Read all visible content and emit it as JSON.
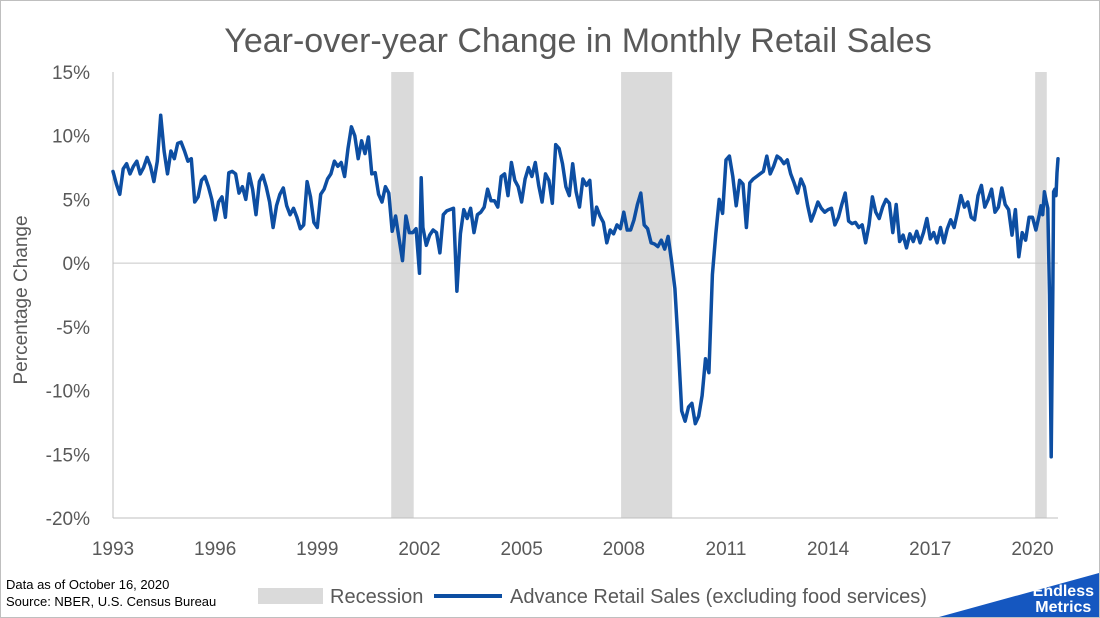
{
  "chart_data": {
    "type": "line",
    "title": "Year-over-year Change in Monthly Retail Sales",
    "xlabel": "",
    "ylabel": "Percentage Change",
    "x_range": [
      1993.0,
      2020.75
    ],
    "ylim": [
      -20,
      15
    ],
    "y_ticks": [
      "15%",
      "10%",
      "5%",
      "0%",
      "-5%",
      "-10%",
      "-15%",
      "-20%"
    ],
    "y_tick_values": [
      15,
      10,
      5,
      0,
      -5,
      -10,
      -15,
      -20
    ],
    "x_ticks": [
      "1993",
      "1996",
      "1999",
      "2002",
      "2005",
      "2008",
      "2011",
      "2014",
      "2017",
      "2020"
    ],
    "x_tick_values": [
      1993,
      1996,
      1999,
      2002,
      2005,
      2008,
      2011,
      2014,
      2017,
      2020
    ],
    "grid": false,
    "legend_position": "bottom",
    "recessions": [
      {
        "start": 2001.17,
        "end": 2001.83
      },
      {
        "start": 2007.92,
        "end": 2009.42
      },
      {
        "start": 2020.08,
        "end": 2020.42
      }
    ],
    "series": [
      {
        "name": "Advance Retail Sales (excluding food services)",
        "color": "#0d4ea2",
        "points": [
          [
            1993.0,
            7.2
          ],
          [
            1993.1,
            6.2
          ],
          [
            1993.2,
            5.4
          ],
          [
            1993.3,
            7.4
          ],
          [
            1993.4,
            7.8
          ],
          [
            1993.5,
            7.0
          ],
          [
            1993.6,
            7.6
          ],
          [
            1993.7,
            8.0
          ],
          [
            1993.8,
            7.0
          ],
          [
            1993.9,
            7.5
          ],
          [
            1994.0,
            8.3
          ],
          [
            1994.1,
            7.6
          ],
          [
            1994.2,
            6.4
          ],
          [
            1994.3,
            8.0
          ],
          [
            1994.4,
            11.6
          ],
          [
            1994.5,
            8.8
          ],
          [
            1994.6,
            7.0
          ],
          [
            1994.7,
            8.8
          ],
          [
            1994.8,
            8.2
          ],
          [
            1994.9,
            9.4
          ],
          [
            1995.0,
            9.5
          ],
          [
            1995.1,
            8.8
          ],
          [
            1995.2,
            8.0
          ],
          [
            1995.3,
            8.2
          ],
          [
            1995.4,
            4.8
          ],
          [
            1995.5,
            5.2
          ],
          [
            1995.6,
            6.5
          ],
          [
            1995.7,
            6.8
          ],
          [
            1995.8,
            6.0
          ],
          [
            1995.9,
            5.0
          ],
          [
            1996.0,
            3.4
          ],
          [
            1996.1,
            4.8
          ],
          [
            1996.2,
            5.2
          ],
          [
            1996.3,
            3.6
          ],
          [
            1996.4,
            7.1
          ],
          [
            1996.5,
            7.2
          ],
          [
            1996.6,
            7.0
          ],
          [
            1996.7,
            5.5
          ],
          [
            1996.8,
            6.0
          ],
          [
            1996.9,
            5.0
          ],
          [
            1997.0,
            7.0
          ],
          [
            1997.1,
            5.8
          ],
          [
            1997.2,
            3.8
          ],
          [
            1997.3,
            6.4
          ],
          [
            1997.4,
            6.9
          ],
          [
            1997.5,
            6.0
          ],
          [
            1997.6,
            4.8
          ],
          [
            1997.7,
            2.8
          ],
          [
            1997.8,
            4.5
          ],
          [
            1997.9,
            5.4
          ],
          [
            1998.0,
            5.9
          ],
          [
            1998.1,
            4.5
          ],
          [
            1998.2,
            3.8
          ],
          [
            1998.3,
            4.3
          ],
          [
            1998.4,
            3.6
          ],
          [
            1998.5,
            2.7
          ],
          [
            1998.6,
            3.0
          ],
          [
            1998.7,
            6.4
          ],
          [
            1998.8,
            5.2
          ],
          [
            1998.9,
            3.2
          ],
          [
            1999.0,
            2.8
          ],
          [
            1999.1,
            5.4
          ],
          [
            1999.2,
            5.8
          ],
          [
            1999.3,
            6.6
          ],
          [
            1999.4,
            7.0
          ],
          [
            1999.5,
            8.0
          ],
          [
            1999.6,
            7.6
          ],
          [
            1999.7,
            7.9
          ],
          [
            1999.8,
            6.8
          ],
          [
            1999.9,
            9.0
          ],
          [
            2000.0,
            10.7
          ],
          [
            2000.1,
            10.0
          ],
          [
            2000.2,
            8.2
          ],
          [
            2000.3,
            9.6
          ],
          [
            2000.4,
            8.6
          ],
          [
            2000.5,
            9.9
          ],
          [
            2000.6,
            7.0
          ],
          [
            2000.7,
            7.1
          ],
          [
            2000.8,
            5.4
          ],
          [
            2000.9,
            4.8
          ],
          [
            2001.0,
            6.0
          ],
          [
            2001.1,
            5.5
          ],
          [
            2001.2,
            2.5
          ],
          [
            2001.3,
            3.7
          ],
          [
            2001.4,
            1.9
          ],
          [
            2001.5,
            0.2
          ],
          [
            2001.6,
            3.7
          ],
          [
            2001.7,
            2.4
          ],
          [
            2001.8,
            2.4
          ],
          [
            2001.9,
            2.7
          ],
          [
            2002.0,
            -0.8
          ],
          [
            2002.05,
            6.7
          ],
          [
            2002.1,
            2.8
          ],
          [
            2002.2,
            1.4
          ],
          [
            2002.3,
            2.2
          ],
          [
            2002.4,
            2.6
          ],
          [
            2002.5,
            2.4
          ],
          [
            2002.6,
            0.8
          ],
          [
            2002.7,
            3.8
          ],
          [
            2002.8,
            4.1
          ],
          [
            2003.0,
            4.3
          ],
          [
            2003.1,
            -2.2
          ],
          [
            2003.2,
            2.3
          ],
          [
            2003.3,
            4.2
          ],
          [
            2003.4,
            3.5
          ],
          [
            2003.5,
            4.3
          ],
          [
            2003.6,
            2.4
          ],
          [
            2003.7,
            3.8
          ],
          [
            2003.8,
            4.0
          ],
          [
            2003.9,
            4.4
          ],
          [
            2004.0,
            5.8
          ],
          [
            2004.1,
            4.9
          ],
          [
            2004.2,
            4.9
          ],
          [
            2004.3,
            4.4
          ],
          [
            2004.4,
            6.8
          ],
          [
            2004.5,
            7.0
          ],
          [
            2004.6,
            5.3
          ],
          [
            2004.7,
            7.9
          ],
          [
            2004.8,
            6.5
          ],
          [
            2004.9,
            6.0
          ],
          [
            2005.0,
            4.8
          ],
          [
            2005.1,
            6.6
          ],
          [
            2005.2,
            7.5
          ],
          [
            2005.3,
            6.8
          ],
          [
            2005.4,
            7.9
          ],
          [
            2005.5,
            6.1
          ],
          [
            2005.6,
            4.8
          ],
          [
            2005.7,
            7.0
          ],
          [
            2005.8,
            6.5
          ],
          [
            2005.9,
            4.7
          ],
          [
            2006.0,
            9.3
          ],
          [
            2006.1,
            9.0
          ],
          [
            2006.2,
            7.8
          ],
          [
            2006.3,
            6.0
          ],
          [
            2006.4,
            5.3
          ],
          [
            2006.5,
            7.8
          ],
          [
            2006.6,
            5.6
          ],
          [
            2006.7,
            4.4
          ],
          [
            2006.8,
            6.6
          ],
          [
            2006.9,
            6.1
          ],
          [
            2007.0,
            6.5
          ],
          [
            2007.1,
            3.0
          ],
          [
            2007.2,
            4.4
          ],
          [
            2007.3,
            3.7
          ],
          [
            2007.4,
            3.2
          ],
          [
            2007.5,
            1.6
          ],
          [
            2007.6,
            2.6
          ],
          [
            2007.7,
            2.3
          ],
          [
            2007.8,
            3.0
          ],
          [
            2007.9,
            2.7
          ],
          [
            2008.0,
            4.0
          ],
          [
            2008.1,
            2.6
          ],
          [
            2008.2,
            2.6
          ],
          [
            2008.3,
            3.4
          ],
          [
            2008.4,
            4.6
          ],
          [
            2008.5,
            5.5
          ],
          [
            2008.6,
            3.0
          ],
          [
            2008.7,
            2.7
          ],
          [
            2008.8,
            1.6
          ],
          [
            2008.9,
            1.5
          ],
          [
            2009.0,
            1.3
          ],
          [
            2009.1,
            1.8
          ],
          [
            2009.2,
            1.1
          ],
          [
            2009.3,
            2.1
          ],
          [
            2009.4,
            0.2
          ],
          [
            2009.5,
            -2.0
          ],
          [
            2009.6,
            -6.5
          ],
          [
            2009.7,
            -11.6
          ],
          [
            2009.8,
            -12.4
          ],
          [
            2009.9,
            -11.3
          ],
          [
            2010.0,
            -11.0
          ],
          [
            2010.1,
            -12.6
          ],
          [
            2010.2,
            -12.0
          ],
          [
            2010.3,
            -10.4
          ],
          [
            2010.4,
            -7.5
          ],
          [
            2010.5,
            -8.6
          ],
          [
            2010.6,
            -0.9
          ],
          [
            2010.7,
            2.3
          ],
          [
            2010.8,
            5.0
          ],
          [
            2010.9,
            3.9
          ],
          [
            2011.0,
            8.1
          ],
          [
            2011.1,
            8.4
          ],
          [
            2011.2,
            6.8
          ],
          [
            2011.3,
            4.5
          ],
          [
            2011.4,
            6.5
          ],
          [
            2011.5,
            6.2
          ],
          [
            2011.6,
            2.8
          ],
          [
            2011.7,
            6.3
          ],
          [
            2011.8,
            6.6
          ],
          [
            2011.9,
            6.8
          ],
          [
            2012.0,
            7.0
          ],
          [
            2012.1,
            7.2
          ],
          [
            2012.2,
            8.4
          ],
          [
            2012.3,
            7.0
          ],
          [
            2012.4,
            7.6
          ],
          [
            2012.5,
            8.4
          ],
          [
            2012.6,
            8.2
          ],
          [
            2012.7,
            7.8
          ],
          [
            2012.8,
            8.1
          ],
          [
            2012.9,
            7.0
          ],
          [
            2013.0,
            6.3
          ],
          [
            2013.1,
            5.5
          ],
          [
            2013.2,
            6.6
          ],
          [
            2013.3,
            6.0
          ],
          [
            2013.4,
            4.5
          ],
          [
            2013.5,
            3.3
          ],
          [
            2013.6,
            4.0
          ],
          [
            2013.7,
            4.8
          ],
          [
            2013.8,
            4.3
          ],
          [
            2013.9,
            4.0
          ],
          [
            2014.0,
            4.2
          ],
          [
            2014.1,
            4.3
          ],
          [
            2014.2,
            3.0
          ],
          [
            2014.3,
            3.6
          ],
          [
            2014.4,
            4.6
          ],
          [
            2014.5,
            5.5
          ],
          [
            2014.6,
            3.3
          ],
          [
            2014.7,
            3.1
          ],
          [
            2014.8,
            3.2
          ],
          [
            2014.9,
            2.8
          ],
          [
            2015.0,
            3.0
          ],
          [
            2015.1,
            1.6
          ],
          [
            2015.2,
            3.0
          ],
          [
            2015.3,
            5.2
          ],
          [
            2015.4,
            4.0
          ],
          [
            2015.5,
            3.5
          ],
          [
            2015.6,
            4.4
          ],
          [
            2015.7,
            5.0
          ],
          [
            2015.8,
            4.7
          ],
          [
            2015.9,
            2.4
          ],
          [
            2016.0,
            4.6
          ],
          [
            2016.1,
            1.7
          ],
          [
            2016.2,
            2.2
          ],
          [
            2016.3,
            1.2
          ],
          [
            2016.4,
            2.3
          ],
          [
            2016.5,
            1.7
          ],
          [
            2016.6,
            2.5
          ],
          [
            2016.7,
            1.6
          ],
          [
            2016.8,
            2.4
          ],
          [
            2016.9,
            3.5
          ],
          [
            2017.0,
            1.9
          ],
          [
            2017.1,
            2.4
          ],
          [
            2017.2,
            1.6
          ],
          [
            2017.3,
            2.8
          ],
          [
            2017.4,
            1.6
          ],
          [
            2017.5,
            2.7
          ],
          [
            2017.6,
            3.4
          ],
          [
            2017.7,
            2.8
          ],
          [
            2017.8,
            4.0
          ],
          [
            2017.9,
            5.3
          ],
          [
            2018.0,
            4.4
          ],
          [
            2018.1,
            4.8
          ],
          [
            2018.2,
            3.6
          ],
          [
            2018.3,
            3.4
          ],
          [
            2018.4,
            5.3
          ],
          [
            2018.5,
            6.1
          ],
          [
            2018.6,
            4.4
          ],
          [
            2018.7,
            5.0
          ],
          [
            2018.8,
            5.8
          ],
          [
            2018.9,
            4.0
          ],
          [
            2019.0,
            4.4
          ],
          [
            2019.1,
            5.9
          ],
          [
            2019.2,
            4.6
          ],
          [
            2019.3,
            4.2
          ],
          [
            2019.4,
            2.2
          ],
          [
            2019.5,
            4.2
          ],
          [
            2019.6,
            0.5
          ],
          [
            2019.7,
            2.4
          ],
          [
            2019.8,
            1.8
          ],
          [
            2019.9,
            3.6
          ],
          [
            2020.0,
            3.6
          ],
          [
            2020.1,
            2.6
          ],
          [
            2020.2,
            3.8
          ],
          [
            2020.25,
            4.5
          ],
          [
            2020.3,
            3.8
          ],
          [
            2020.35,
            5.6
          ],
          [
            2020.4,
            4.9
          ],
          [
            2020.45,
            4.3
          ],
          [
            2020.5,
            -2.5
          ],
          [
            2020.55,
            -15.2
          ],
          [
            2020.6,
            -1.5
          ],
          [
            2020.62,
            5.6
          ],
          [
            2020.66,
            5.8
          ],
          [
            2020.69,
            5.3
          ],
          [
            2020.72,
            7.1
          ],
          [
            2020.75,
            8.2
          ]
        ]
      }
    ],
    "legend": [
      {
        "label": "Recession",
        "kind": "band",
        "color": "#dadada"
      },
      {
        "label": "Advance Retail Sales (excluding food services)",
        "kind": "line",
        "color": "#0d4ea2"
      }
    ]
  },
  "notes": {
    "data_date": "Data as of October 16, 2020",
    "source": "Source: NBER, U.S. Census Bureau"
  },
  "brand": {
    "line1": "Endless",
    "line2": "Metrics",
    "color": "#1557c0"
  }
}
